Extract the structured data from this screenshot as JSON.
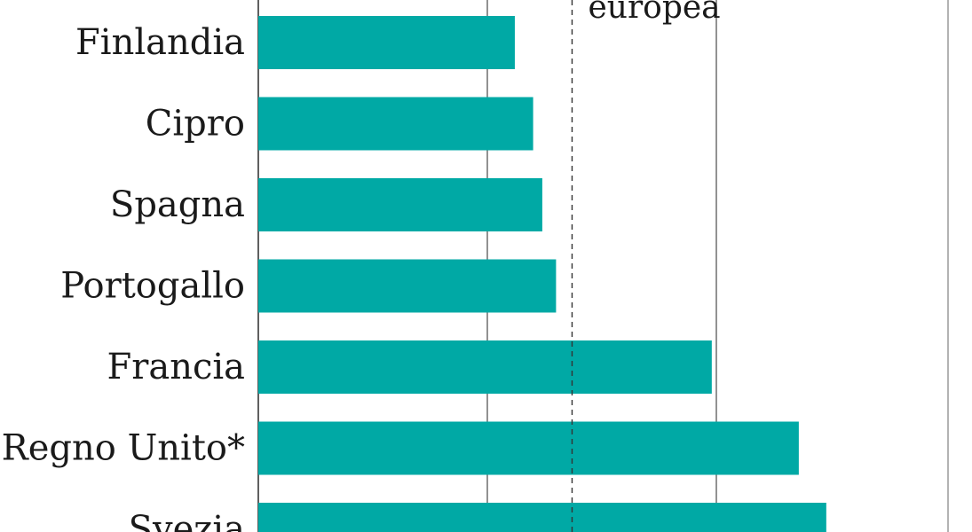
{
  "chart_data": {
    "type": "bar",
    "orientation": "horizontal",
    "categories": [
      "Finlandia",
      "Cipro",
      "Spagna",
      "Portogallo",
      "Francia",
      "Regno Unito*",
      "Svezia"
    ],
    "values": [
      11.2,
      12.0,
      12.4,
      13.0,
      19.8,
      23.6,
      24.8
    ],
    "reference_line": {
      "label": "europea",
      "value": 13.7,
      "style": "dashed"
    },
    "xlim": [
      0,
      30
    ],
    "grid": true,
    "colors": {
      "bar": "#00a9a5",
      "gridline": "#4a4a4a",
      "axis": "#2a2a2a"
    }
  }
}
